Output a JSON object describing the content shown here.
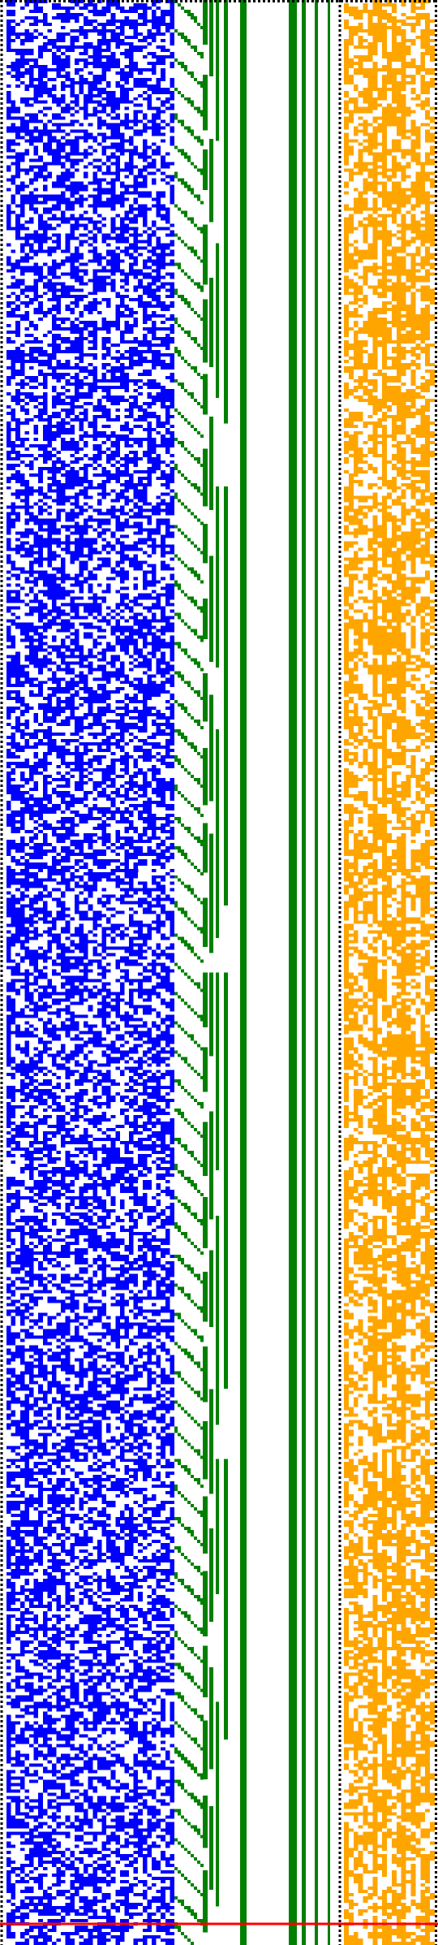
{
  "figure": {
    "kind": "bit-pattern visualization (no text)",
    "background": "#ffffff",
    "colors": {
      "bits_left": "#0000ff",
      "carry_diagonal": "#008000",
      "bars": "#008000",
      "bits_right": "#ffa500",
      "marker": "#ff0000",
      "dotted_border": "#000000"
    },
    "structure": {
      "rows": 600,
      "left_columns": 37,
      "right_columns": 19,
      "carry_lanes": 9,
      "vertical_bars": 9,
      "marker_row_fraction": 0.989
    }
  }
}
